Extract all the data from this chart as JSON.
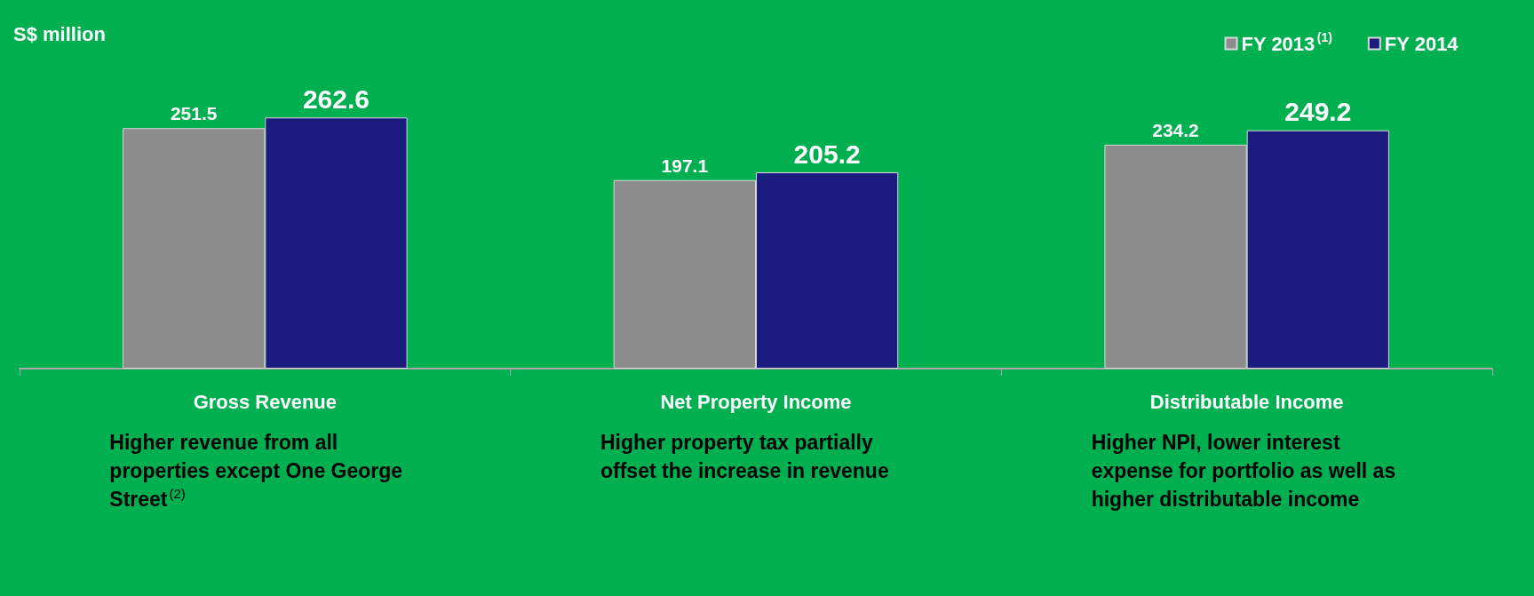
{
  "chart_data": {
    "type": "bar",
    "ylabel": "S$ million",
    "categories": [
      "Gross Revenue",
      "Net Property Income",
      "Distributable Income"
    ],
    "series": [
      {
        "name": "FY 2013$^{(1)}$",
        "color": "#8c8c8c",
        "values": [
          251.5,
          197.1,
          234.2
        ]
      },
      {
        "name": "FY 2014",
        "color": "#1c1c80",
        "values": [
          262.6,
          205.2,
          249.2
        ]
      }
    ],
    "data_labels": true,
    "legend": "top right",
    "annotations": [
      "Higher revenue from all properties except One George Street$^{(2)}$",
      "Higher property tax partially offset the increase in revenue",
      "Higher NPI, lower interest expense for portfolio as well as higher distributable income"
    ]
  }
}
